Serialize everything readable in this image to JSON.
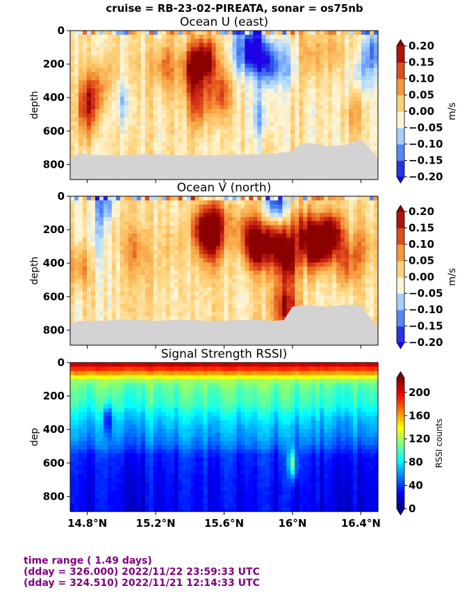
{
  "figure": {
    "suptitle": "cruise = RB-23-02-PIREATA,  sonar = os75nb"
  },
  "footer": {
    "line1": "time range ( 1.49 days)",
    "line2": "(dday = 326.000) 2022/11/22 23:59:33 UTC",
    "line3": "(dday = 324.510) 2022/11/21 12:14:33 UTC"
  },
  "colors": {
    "missing": "#d3d3d3",
    "diverging": [
      "#1c00e6",
      "#2e5ce6",
      "#6699ff",
      "#b3dcff",
      "#fff7d6",
      "#ffd27a",
      "#f7a545",
      "#e8601f",
      "#c82312",
      "#8b0000"
    ],
    "jet": [
      "#00007f",
      "#0000ff",
      "#007fff",
      "#00ffff",
      "#7fff7f",
      "#ffff00",
      "#ff7f00",
      "#ff0000",
      "#7f0000"
    ],
    "footer_text": "#800080"
  },
  "chart_data": [
    {
      "type": "heatmap",
      "title": "Ocean U (east)",
      "xlabel": "",
      "ylabel": "depth",
      "xlim": [
        14.7,
        16.5
      ],
      "ylim": [
        890,
        0
      ],
      "yticks": [
        0,
        200,
        400,
        600,
        800
      ],
      "ytick_labels": [
        "0",
        "200",
        "400",
        "600",
        "800"
      ],
      "xticks": [
        14.8,
        15.2,
        15.6,
        16.0,
        16.4
      ],
      "xtick_labels": [],
      "colorbar": {
        "label": "m/s",
        "range": [
          -0.2,
          0.2
        ],
        "ticks": [
          0.2,
          0.15,
          0.1,
          0.05,
          0.0,
          -0.05,
          -0.1,
          -0.15,
          -0.2
        ],
        "tick_labels": [
          "0.20",
          "0.15",
          "0.10",
          "0.05",
          "0.00",
          "−0.05",
          "−0.10",
          "−0.15",
          "−0.20"
        ]
      },
      "bottom_depth_profile": {
        "lat": [
          14.7,
          14.75,
          14.8,
          14.9,
          15.0,
          15.1,
          15.2,
          15.3,
          15.4,
          15.5,
          15.6,
          15.7,
          15.8,
          15.9,
          16.0,
          16.05,
          16.1,
          16.2,
          16.3,
          16.4,
          16.45,
          16.5
        ],
        "depth": [
          770,
          730,
          740,
          745,
          745,
          740,
          740,
          745,
          745,
          745,
          745,
          740,
          740,
          735,
          720,
          680,
          670,
          690,
          685,
          650,
          705,
          760
        ]
      },
      "features": [
        {
          "lat": 14.82,
          "depth": 380,
          "value": 0.13
        },
        {
          "lat": 14.8,
          "depth": 520,
          "value": 0.09
        },
        {
          "lat": 14.9,
          "depth": 300,
          "value": 0.06
        },
        {
          "lat": 15.0,
          "depth": 420,
          "value": -0.06
        },
        {
          "lat": 15.1,
          "depth": 250,
          "value": 0.02
        },
        {
          "lat": 15.25,
          "depth": 220,
          "value": 0.1
        },
        {
          "lat": 15.42,
          "depth": 230,
          "value": 0.2
        },
        {
          "lat": 15.5,
          "depth": 170,
          "value": 0.19
        },
        {
          "lat": 15.45,
          "depth": 450,
          "value": 0.12
        },
        {
          "lat": 15.58,
          "depth": 380,
          "value": 0.12
        },
        {
          "lat": 15.7,
          "depth": 130,
          "value": -0.1
        },
        {
          "lat": 15.78,
          "depth": 110,
          "value": -0.2
        },
        {
          "lat": 15.86,
          "depth": 200,
          "value": -0.18
        },
        {
          "lat": 15.82,
          "depth": 520,
          "value": -0.08
        },
        {
          "lat": 15.98,
          "depth": 200,
          "value": -0.07
        },
        {
          "lat": 16.1,
          "depth": 150,
          "value": 0.08
        },
        {
          "lat": 16.25,
          "depth": 120,
          "value": 0.07
        },
        {
          "lat": 16.4,
          "depth": 250,
          "value": -0.07
        },
        {
          "lat": 16.35,
          "depth": 500,
          "value": 0.05
        },
        {
          "lat": 16.47,
          "depth": 120,
          "value": -0.1
        }
      ]
    },
    {
      "type": "heatmap",
      "title": "Ocean V (north)",
      "xlabel": "",
      "ylabel": "depth",
      "xlim": [
        14.7,
        16.5
      ],
      "ylim": [
        890,
        0
      ],
      "yticks": [
        0,
        200,
        400,
        600,
        800
      ],
      "ytick_labels": [
        "0",
        "200",
        "400",
        "600",
        "800"
      ],
      "xticks": [
        14.8,
        15.2,
        15.6,
        16.0,
        16.4
      ],
      "xtick_labels": [],
      "colorbar": {
        "label": "m/s",
        "range": [
          -0.2,
          0.2
        ],
        "ticks": [
          0.2,
          0.15,
          0.1,
          0.05,
          0.0,
          -0.05,
          -0.1,
          -0.15,
          -0.2
        ],
        "tick_labels": [
          "0.20",
          "0.15",
          "0.10",
          "0.05",
          "0.00",
          "−0.05",
          "−0.10",
          "−0.15",
          "−0.20"
        ]
      },
      "bottom_depth_profile": {
        "lat": [
          14.7,
          14.75,
          14.8,
          14.9,
          15.0,
          15.1,
          15.2,
          15.3,
          15.4,
          15.5,
          15.6,
          15.7,
          15.8,
          15.9,
          15.95,
          16.0,
          16.1,
          16.2,
          16.3,
          16.4,
          16.45,
          16.5
        ],
        "depth": [
          770,
          745,
          745,
          745,
          735,
          740,
          745,
          740,
          740,
          745,
          745,
          740,
          740,
          745,
          740,
          660,
          650,
          660,
          650,
          650,
          720,
          780
        ]
      },
      "features": [
        {
          "lat": 14.75,
          "depth": 420,
          "value": 0.08
        },
        {
          "lat": 14.85,
          "depth": 250,
          "value": -0.05
        },
        {
          "lat": 14.95,
          "depth": 200,
          "value": 0.03
        },
        {
          "lat": 15.08,
          "depth": 320,
          "value": 0.07
        },
        {
          "lat": 15.15,
          "depth": 430,
          "value": 0.02
        },
        {
          "lat": 15.3,
          "depth": 300,
          "value": 0.04
        },
        {
          "lat": 15.48,
          "depth": 200,
          "value": 0.2
        },
        {
          "lat": 15.56,
          "depth": 180,
          "value": 0.17
        },
        {
          "lat": 15.52,
          "depth": 330,
          "value": 0.08
        },
        {
          "lat": 15.72,
          "depth": 200,
          "value": 0.1
        },
        {
          "lat": 15.78,
          "depth": 300,
          "value": 0.2
        },
        {
          "lat": 15.85,
          "depth": 280,
          "value": 0.12
        },
        {
          "lat": 15.93,
          "depth": 260,
          "value": 0.14
        },
        {
          "lat": 15.97,
          "depth": 380,
          "value": 0.2
        },
        {
          "lat": 15.96,
          "depth": 660,
          "value": 0.2
        },
        {
          "lat": 16.05,
          "depth": 200,
          "value": 0.12
        },
        {
          "lat": 16.12,
          "depth": 300,
          "value": 0.2
        },
        {
          "lat": 16.18,
          "depth": 260,
          "value": 0.2
        },
        {
          "lat": 16.25,
          "depth": 220,
          "value": 0.15
        },
        {
          "lat": 16.32,
          "depth": 400,
          "value": 0.12
        },
        {
          "lat": 16.42,
          "depth": 300,
          "value": 0.06
        },
        {
          "lat": 15.9,
          "depth": 30,
          "value": -0.18
        },
        {
          "lat": 14.9,
          "depth": 30,
          "value": -0.12
        }
      ]
    },
    {
      "type": "heatmap",
      "title": "Signal Strength RSSI)",
      "xlabel": "",
      "ylabel": "dep",
      "xlim": [
        14.7,
        16.5
      ],
      "ylim": [
        890,
        0
      ],
      "yticks": [
        0,
        200,
        400,
        600,
        800
      ],
      "ytick_labels": [
        "0",
        "200",
        "400",
        "600",
        "800"
      ],
      "xticks": [
        14.8,
        15.2,
        15.6,
        16.0,
        16.4
      ],
      "xtick_labels": [
        "14.8°N",
        "15.2°N",
        "15.6°N",
        "16°N",
        "16.4°N"
      ],
      "colorbar": {
        "label": "RSSI counts",
        "range": [
          0,
          225
        ],
        "ticks": [
          200,
          160,
          120,
          80,
          40,
          0
        ],
        "tick_labels": [
          "200",
          "160",
          "120",
          "80",
          "40",
          "0"
        ]
      },
      "depth_profile": {
        "depth": [
          10,
          40,
          70,
          100,
          150,
          200,
          250,
          300,
          350,
          400,
          450,
          500,
          550,
          600,
          700,
          800,
          880
        ],
        "rssi": [
          210,
          185,
          155,
          120,
          105,
          100,
          95,
          82,
          72,
          65,
          58,
          50,
          35,
          32,
          28,
          26,
          25
        ]
      },
      "features": [
        {
          "lat": 14.92,
          "depth": 350,
          "value": 25
        },
        {
          "lat": 16.0,
          "depth": 600,
          "value": 110
        }
      ]
    }
  ]
}
